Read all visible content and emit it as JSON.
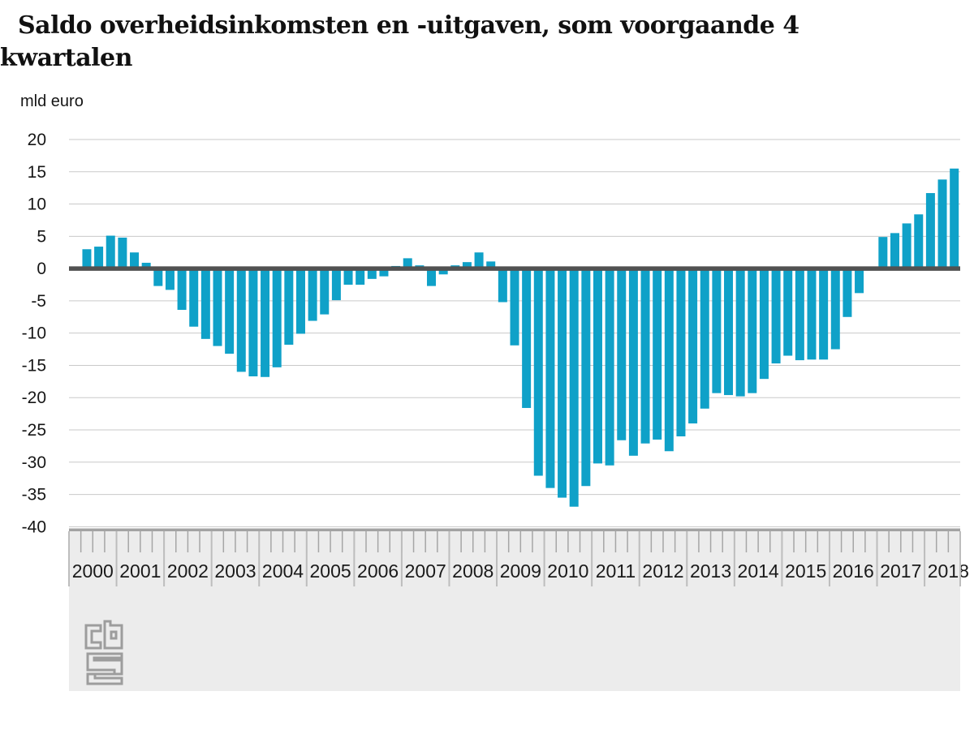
{
  "title": "Saldo overheidsinkomsten en -uitgaven, som voorgaande 4 kwartalen",
  "y_axis_label": "mld euro",
  "footer": {
    "logo": "cbs-logo"
  },
  "colors": {
    "bar": "#0fa1c8",
    "zero_line": "#515151",
    "gridline": "#c9c9c9",
    "axis_band": "#ececec",
    "axis_line": "#a3a3a3",
    "quarter_tick": "#a6a6a6",
    "year_separator": "#bdbdbd",
    "logo": "#9d9d9d",
    "text": "#161616"
  },
  "chart_data": {
    "type": "bar",
    "title": "Saldo overheidsinkomsten en -uitgaven, som voorgaande 4 kwartalen",
    "xlabel": "",
    "ylabel": "mld euro",
    "ylim": [
      -40,
      20
    ],
    "y_ticks": [
      20,
      15,
      10,
      5,
      0,
      -5,
      -10,
      -15,
      -20,
      -25,
      -30,
      -35,
      -40
    ],
    "grid": true,
    "legend_position": "none",
    "year_labels": [
      "2000",
      "2001",
      "2002",
      "2003",
      "2004",
      "2005",
      "2006",
      "2007",
      "2008",
      "2009",
      "2010",
      "2011",
      "2012",
      "2013",
      "2014",
      "2015",
      "2016",
      "2017",
      "2018"
    ],
    "quarters_per_year": 4,
    "series": [
      {
        "name": "Saldo overheidsinkomsten en -uitgaven (mld euro, som voorgaande 4 kwartalen)",
        "values": [
          0.3,
          3.0,
          3.4,
          5.1,
          4.8,
          2.5,
          0.9,
          -2.7,
          -3.3,
          -6.4,
          -9.0,
          -10.9,
          -12.0,
          -13.2,
          -16.0,
          -16.7,
          -16.8,
          -15.3,
          -11.8,
          -10.1,
          -8.1,
          -7.1,
          -4.9,
          -2.5,
          -2.5,
          -1.6,
          -1.2,
          0.4,
          1.6,
          0.5,
          -2.7,
          -0.9,
          0.5,
          1.0,
          2.5,
          1.1,
          -5.2,
          -11.9,
          -21.6,
          -32.1,
          -34.0,
          -35.5,
          -36.9,
          -33.7,
          -30.2,
          -30.5,
          -26.6,
          -29.0,
          -27.1,
          -26.5,
          -28.3,
          -26.0,
          -24.0,
          -21.7,
          -19.3,
          -19.6,
          -19.8,
          -19.3,
          -17.1,
          -14.7,
          -13.5,
          -14.2,
          -14.1,
          -14.1,
          -12.5,
          -7.5,
          -3.8,
          0.0,
          4.9,
          5.5,
          7.0,
          8.4,
          11.7,
          13.8,
          15.5
        ]
      }
    ]
  }
}
